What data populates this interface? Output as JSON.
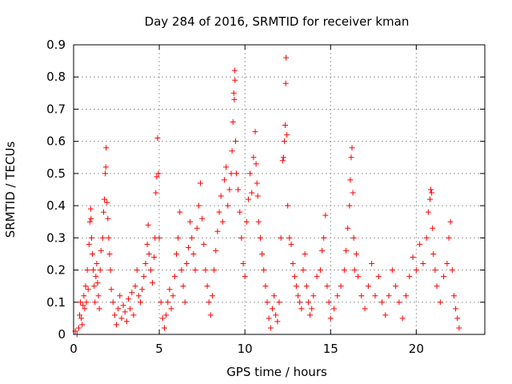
{
  "chart_data": {
    "type": "scatter",
    "title": "Day 284 of 2016, SRMTID for receiver kman",
    "xlabel": "GPS time / hours",
    "ylabel": "SRMTID / TECUs",
    "xlim": [
      0,
      24
    ],
    "ylim": [
      0,
      0.9
    ],
    "xticks": [
      0,
      5,
      10,
      15,
      20
    ],
    "yticks": [
      0,
      0.1,
      0.2,
      0.3,
      0.4,
      0.5,
      0.6,
      0.7,
      0.8,
      0.9
    ],
    "xtick_labels": [
      "0",
      "5",
      "10",
      "15",
      "20"
    ],
    "ytick_labels": [
      "0",
      "0.1",
      "0.2",
      "0.3",
      "0.4",
      "0.5",
      "0.6",
      "0.7",
      "0.8",
      "0.9"
    ],
    "grid": true,
    "marker": "+",
    "color": "#ff0000",
    "series": [
      {
        "name": "SRMTID",
        "points": [
          [
            0.1,
            0.01
          ],
          [
            0.2,
            0.0
          ],
          [
            0.3,
            0.02
          ],
          [
            0.35,
            0.06
          ],
          [
            0.4,
            0.1
          ],
          [
            0.45,
            0.05
          ],
          [
            0.5,
            0.03
          ],
          [
            0.55,
            0.09
          ],
          [
            0.6,
            0.12
          ],
          [
            0.65,
            0.08
          ],
          [
            0.7,
            0.15
          ],
          [
            0.75,
            0.1
          ],
          [
            0.8,
            0.2
          ],
          [
            0.85,
            0.14
          ],
          [
            0.9,
            0.28
          ],
          [
            0.95,
            0.35
          ],
          [
            1.0,
            0.39
          ],
          [
            1.02,
            0.36
          ],
          [
            1.05,
            0.3
          ],
          [
            1.1,
            0.25
          ],
          [
            1.15,
            0.2
          ],
          [
            1.2,
            0.15
          ],
          [
            1.25,
            0.1
          ],
          [
            1.3,
            0.18
          ],
          [
            1.35,
            0.22
          ],
          [
            1.4,
            0.16
          ],
          [
            1.45,
            0.12
          ],
          [
            1.5,
            0.08
          ],
          [
            1.55,
            0.2
          ],
          [
            1.6,
            0.26
          ],
          [
            1.7,
            0.3
          ],
          [
            1.75,
            0.38
          ],
          [
            1.8,
            0.42
          ],
          [
            1.85,
            0.5
          ],
          [
            1.88,
            0.52
          ],
          [
            1.9,
            0.58
          ],
          [
            1.95,
            0.41
          ],
          [
            2.0,
            0.36
          ],
          [
            2.05,
            0.3
          ],
          [
            2.1,
            0.25
          ],
          [
            2.15,
            0.2
          ],
          [
            2.2,
            0.14
          ],
          [
            2.3,
            0.1
          ],
          [
            2.4,
            0.06
          ],
          [
            2.5,
            0.03
          ],
          [
            2.6,
            0.08
          ],
          [
            2.7,
            0.12
          ],
          [
            2.8,
            0.05
          ],
          [
            2.9,
            0.09
          ],
          [
            3.0,
            0.07
          ],
          [
            3.1,
            0.04
          ],
          [
            3.2,
            0.11
          ],
          [
            3.3,
            0.08
          ],
          [
            3.4,
            0.13
          ],
          [
            3.5,
            0.06
          ],
          [
            3.6,
            0.15
          ],
          [
            3.7,
            0.2
          ],
          [
            3.8,
            0.12
          ],
          [
            3.9,
            0.1
          ],
          [
            4.0,
            0.14
          ],
          [
            4.1,
            0.18
          ],
          [
            4.2,
            0.22
          ],
          [
            4.3,
            0.28
          ],
          [
            4.35,
            0.34
          ],
          [
            4.4,
            0.25
          ],
          [
            4.5,
            0.2
          ],
          [
            4.6,
            0.16
          ],
          [
            4.7,
            0.24
          ],
          [
            4.75,
            0.3
          ],
          [
            4.8,
            0.44
          ],
          [
            4.85,
            0.49
          ],
          [
            4.9,
            0.61
          ],
          [
            4.95,
            0.5
          ],
          [
            5.0,
            0.3
          ],
          [
            5.1,
            0.1
          ],
          [
            5.2,
            0.05
          ],
          [
            5.3,
            0.02
          ],
          [
            5.4,
            0.06
          ],
          [
            5.5,
            0.1
          ],
          [
            5.6,
            0.14
          ],
          [
            5.7,
            0.08
          ],
          [
            5.8,
            0.12
          ],
          [
            5.9,
            0.18
          ],
          [
            6.0,
            0.25
          ],
          [
            6.1,
            0.3
          ],
          [
            6.2,
            0.38
          ],
          [
            6.3,
            0.2
          ],
          [
            6.4,
            0.15
          ],
          [
            6.5,
            0.1
          ],
          [
            6.6,
            0.22
          ],
          [
            6.7,
            0.27
          ],
          [
            6.8,
            0.35
          ],
          [
            6.9,
            0.3
          ],
          [
            7.0,
            0.25
          ],
          [
            7.1,
            0.2
          ],
          [
            7.2,
            0.33
          ],
          [
            7.3,
            0.4
          ],
          [
            7.4,
            0.47
          ],
          [
            7.5,
            0.36
          ],
          [
            7.6,
            0.28
          ],
          [
            7.7,
            0.2
          ],
          [
            7.8,
            0.15
          ],
          [
            7.9,
            0.1
          ],
          [
            8.0,
            0.06
          ],
          [
            8.1,
            0.12
          ],
          [
            8.2,
            0.2
          ],
          [
            8.3,
            0.26
          ],
          [
            8.4,
            0.32
          ],
          [
            8.5,
            0.38
          ],
          [
            8.6,
            0.43
          ],
          [
            8.7,
            0.35
          ],
          [
            8.8,
            0.48
          ],
          [
            8.9,
            0.52
          ],
          [
            9.0,
            0.4
          ],
          [
            9.1,
            0.45
          ],
          [
            9.2,
            0.5
          ],
          [
            9.25,
            0.57
          ],
          [
            9.3,
            0.66
          ],
          [
            9.35,
            0.75
          ],
          [
            9.38,
            0.73
          ],
          [
            9.4,
            0.82
          ],
          [
            9.42,
            0.79
          ],
          [
            9.45,
            0.6
          ],
          [
            9.5,
            0.5
          ],
          [
            9.6,
            0.45
          ],
          [
            9.7,
            0.38
          ],
          [
            9.8,
            0.3
          ],
          [
            9.9,
            0.22
          ],
          [
            10.0,
            0.18
          ],
          [
            10.1,
            0.35
          ],
          [
            10.2,
            0.42
          ],
          [
            10.3,
            0.5
          ],
          [
            10.4,
            0.44
          ],
          [
            10.5,
            0.55
          ],
          [
            10.6,
            0.63
          ],
          [
            10.65,
            0.53
          ],
          [
            10.7,
            0.47
          ],
          [
            10.75,
            0.43
          ],
          [
            10.8,
            0.35
          ],
          [
            10.9,
            0.3
          ],
          [
            11.0,
            0.25
          ],
          [
            11.1,
            0.2
          ],
          [
            11.2,
            0.15
          ],
          [
            11.3,
            0.1
          ],
          [
            11.4,
            0.05
          ],
          [
            11.5,
            0.02
          ],
          [
            11.6,
            0.08
          ],
          [
            11.7,
            0.12
          ],
          [
            11.8,
            0.06
          ],
          [
            11.9,
            0.04
          ],
          [
            12.0,
            0.1
          ],
          [
            12.1,
            0.3
          ],
          [
            12.2,
            0.54
          ],
          [
            12.25,
            0.55
          ],
          [
            12.3,
            0.6
          ],
          [
            12.35,
            0.65
          ],
          [
            12.38,
            0.78
          ],
          [
            12.4,
            0.86
          ],
          [
            12.45,
            0.62
          ],
          [
            12.5,
            0.4
          ],
          [
            12.6,
            0.3
          ],
          [
            12.7,
            0.28
          ],
          [
            12.8,
            0.22
          ],
          [
            12.9,
            0.18
          ],
          [
            13.0,
            0.15
          ],
          [
            13.1,
            0.12
          ],
          [
            13.2,
            0.1
          ],
          [
            13.3,
            0.08
          ],
          [
            13.4,
            0.2
          ],
          [
            13.5,
            0.25
          ],
          [
            13.6,
            0.15
          ],
          [
            13.7,
            0.1
          ],
          [
            13.8,
            0.06
          ],
          [
            13.9,
            0.08
          ],
          [
            14.0,
            0.12
          ],
          [
            14.2,
            0.18
          ],
          [
            14.4,
            0.2
          ],
          [
            14.5,
            0.26
          ],
          [
            14.6,
            0.3
          ],
          [
            14.7,
            0.37
          ],
          [
            14.8,
            0.15
          ],
          [
            14.9,
            0.1
          ],
          [
            15.0,
            0.05
          ],
          [
            15.2,
            0.08
          ],
          [
            15.4,
            0.12
          ],
          [
            15.6,
            0.15
          ],
          [
            15.8,
            0.2
          ],
          [
            15.9,
            0.26
          ],
          [
            16.0,
            0.33
          ],
          [
            16.1,
            0.4
          ],
          [
            16.15,
            0.48
          ],
          [
            16.2,
            0.55
          ],
          [
            16.25,
            0.58
          ],
          [
            16.3,
            0.44
          ],
          [
            16.35,
            0.3
          ],
          [
            16.4,
            0.2
          ],
          [
            16.5,
            0.25
          ],
          [
            16.6,
            0.18
          ],
          [
            16.8,
            0.12
          ],
          [
            17.0,
            0.08
          ],
          [
            17.2,
            0.15
          ],
          [
            17.4,
            0.22
          ],
          [
            17.6,
            0.12
          ],
          [
            17.8,
            0.18
          ],
          [
            18.0,
            0.1
          ],
          [
            18.2,
            0.06
          ],
          [
            18.4,
            0.12
          ],
          [
            18.6,
            0.2
          ],
          [
            18.8,
            0.15
          ],
          [
            19.0,
            0.1
          ],
          [
            19.2,
            0.05
          ],
          [
            19.4,
            0.12
          ],
          [
            19.6,
            0.18
          ],
          [
            19.8,
            0.24
          ],
          [
            20.0,
            0.2
          ],
          [
            20.2,
            0.28
          ],
          [
            20.4,
            0.22
          ],
          [
            20.6,
            0.3
          ],
          [
            20.7,
            0.38
          ],
          [
            20.8,
            0.42
          ],
          [
            20.85,
            0.45
          ],
          [
            20.9,
            0.44
          ],
          [
            20.95,
            0.33
          ],
          [
            21.0,
            0.25
          ],
          [
            21.1,
            0.2
          ],
          [
            21.2,
            0.15
          ],
          [
            21.4,
            0.1
          ],
          [
            21.6,
            0.18
          ],
          [
            21.8,
            0.22
          ],
          [
            21.9,
            0.3
          ],
          [
            22.0,
            0.35
          ],
          [
            22.1,
            0.2
          ],
          [
            22.2,
            0.12
          ],
          [
            22.3,
            0.08
          ],
          [
            22.4,
            0.05
          ],
          [
            22.5,
            0.02
          ]
        ]
      }
    ],
    "description": "Dense scatter of '+' markers; values mostly 0-0.3 TECU with peaks near 1.9h (0.58), 4.9h (0.61), 9.4h (0.82), 12.4h (0.86), 16.2h (0.58) and 20.9h (0.45)."
  }
}
